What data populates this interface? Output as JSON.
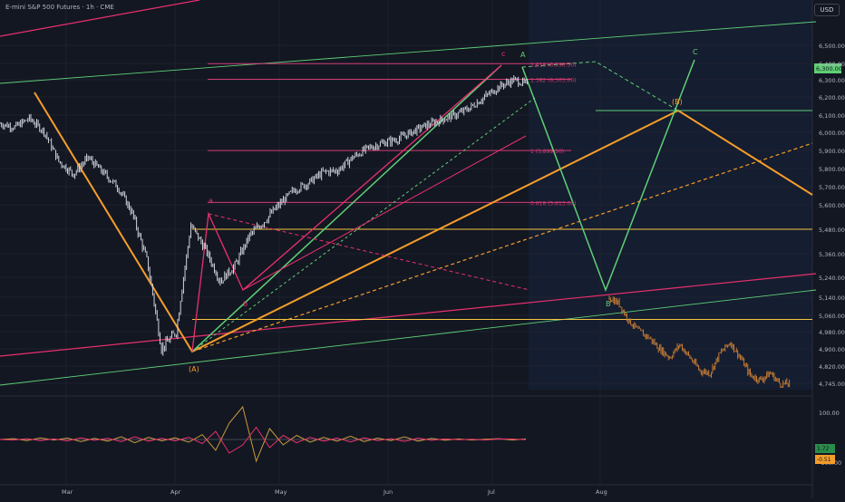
{
  "header": {
    "title": "E-mini S&P 500 Futures · 1h · CME",
    "currency": "USD"
  },
  "colors": {
    "background": "#131722",
    "forecast_background": "#151d30",
    "candle": "#d1d4dc",
    "projected_candle": "#c47c34",
    "orange": "#f59d2a",
    "pink": "#e9306e",
    "green": "#5fcf76",
    "fib": "#d33b73",
    "oscillator": "#c89a3d"
  },
  "chart_data": [
    {
      "type": "line",
      "title": "",
      "xlabel": "",
      "ylabel": "",
      "x_ticks": [
        "Mar",
        "Apr",
        "May",
        "Jun",
        "Jul",
        "Aug"
      ],
      "y_ticks": [
        "6,500.00",
        "6,400.00",
        "6,300.00",
        "6,200.00",
        "6,100.00",
        "6,000.00",
        "5,900.00",
        "5,800.00",
        "5,700.00",
        "5,600.00",
        "5,480.00",
        "5,360.00",
        "5,240.00",
        "5,140.00",
        "5,060.00",
        "4,980.00",
        "4,900.00",
        "4,820.00",
        "4,745.00"
      ],
      "price_label": "6,300.00",
      "series": [
        {
          "values": [
            6050,
            6030,
            6080,
            6005,
            5840,
            5770,
            5860,
            5780,
            5700,
            5560,
            5330,
            4900,
            4980,
            5500,
            5380,
            5220,
            5300,
            5450,
            5520,
            5600,
            5680,
            5720,
            5780,
            5790,
            5860,
            5910,
            5940,
            5960,
            6000,
            6040,
            6070,
            6100,
            6140,
            6200,
            6260,
            6300,
            6270
          ]
        },
        {
          "values": [
            5140,
            5110,
            5030,
            4980,
            4950,
            4900,
            4860,
            4920,
            4860,
            4800,
            4790,
            4880,
            4930,
            4860,
            4780,
            4760,
            4790,
            4740,
            4745
          ]
        }
      ],
      "annotations": {
        "fib_levels": [
          {
            "label": "1.618 (6,398.50)",
            "value": 6398.5
          },
          {
            "label": "1.382 (6,303.00)",
            "value": 6303.0
          },
          {
            "label": "1 (5,899.50)",
            "value": 5899.5
          },
          {
            "label": "0.618 (5,613.00)",
            "value": 5613.0
          }
        ],
        "wave_labels": [
          "(A)",
          "(B)",
          "a",
          "b",
          "c",
          "A",
          "B",
          "C"
        ],
        "horizontal_levels": [
          5480,
          5040
        ]
      }
    },
    {
      "type": "line",
      "title": "",
      "y_ticks": [
        "100.00",
        "-100.00"
      ],
      "badges": [
        "1.72",
        "-0.51"
      ],
      "series": [
        {
          "values": [
            0,
            3,
            -4,
            6,
            -2,
            5,
            -8,
            4,
            -6,
            10,
            -12,
            8,
            -5,
            6,
            -10,
            18,
            -40,
            60,
            120,
            -80,
            40,
            -20,
            15,
            -10,
            8,
            -6,
            12,
            -8,
            5,
            -4,
            10,
            -6,
            4,
            -3,
            2,
            -2,
            1,
            3,
            -2,
            2
          ]
        },
        {
          "values": [
            0,
            -2,
            3,
            -4,
            2,
            -5,
            6,
            -3,
            4,
            -8,
            10,
            -6,
            4,
            -5,
            8,
            -15,
            30,
            -50,
            -20,
            45,
            -30,
            15,
            -12,
            8,
            -6,
            5,
            -9,
            6,
            -4,
            3,
            -7,
            5,
            -3,
            2,
            -1,
            1,
            -2,
            2,
            1.72,
            -0.51
          ]
        }
      ]
    }
  ]
}
